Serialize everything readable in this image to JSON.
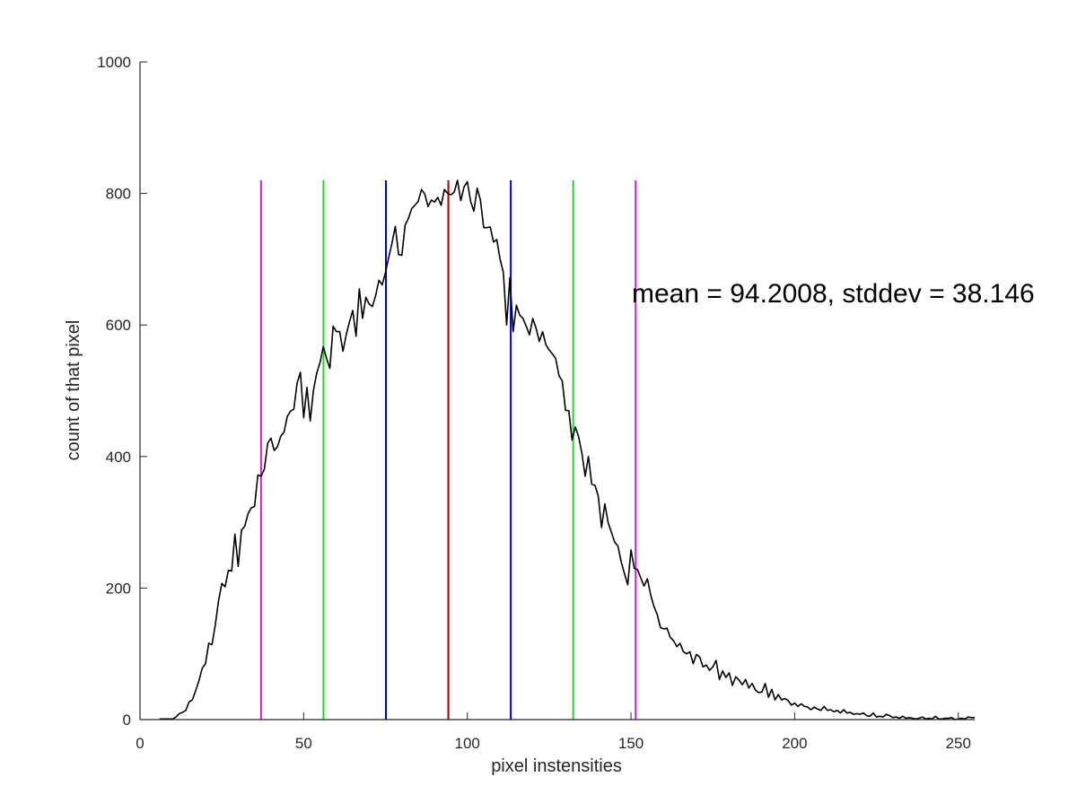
{
  "chart_data": {
    "type": "line",
    "title": "",
    "xlabel": "pixel instensities",
    "ylabel": "count of that pixel",
    "xlim": [
      0,
      255
    ],
    "ylim": [
      0,
      1000
    ],
    "xticks": [
      0,
      50,
      100,
      150,
      200,
      250
    ],
    "yticks": [
      0,
      200,
      400,
      600,
      800,
      1000
    ],
    "grid": false,
    "legend": "none",
    "annotation": "mean = 94.2008, stddev = 38.146",
    "series": [
      {
        "color": "#000000",
        "points": [
          [
            6,
            1
          ],
          [
            10,
            1
          ],
          [
            11,
            4
          ],
          [
            12,
            9
          ],
          [
            13,
            11
          ],
          [
            14,
            14
          ],
          [
            15,
            27
          ],
          [
            16,
            30
          ],
          [
            17,
            44
          ],
          [
            18,
            59
          ],
          [
            19,
            78
          ],
          [
            20,
            85
          ],
          [
            21,
            116
          ],
          [
            22,
            114
          ],
          [
            23,
            144
          ],
          [
            24,
            181
          ],
          [
            25,
            207
          ],
          [
            26,
            202
          ],
          [
            27,
            227
          ],
          [
            28,
            226
          ],
          [
            29,
            282
          ],
          [
            30,
            233
          ],
          [
            31,
            288
          ],
          [
            32,
            294
          ],
          [
            33,
            313
          ],
          [
            34,
            322
          ],
          [
            35,
            324
          ],
          [
            36,
            372
          ],
          [
            37,
            370
          ],
          [
            38,
            381
          ],
          [
            39,
            420
          ],
          [
            40,
            428
          ],
          [
            41,
            409
          ],
          [
            42,
            415
          ],
          [
            43,
            431
          ],
          [
            44,
            437
          ],
          [
            45,
            461
          ],
          [
            46,
            469
          ],
          [
            47,
            472
          ],
          [
            48,
            512
          ],
          [
            49,
            528
          ],
          [
            50,
            459
          ],
          [
            51,
            505
          ],
          [
            52,
            454
          ],
          [
            53,
            501
          ],
          [
            54,
            527
          ],
          [
            55,
            543
          ],
          [
            56,
            567
          ],
          [
            57,
            549
          ],
          [
            58,
            534
          ],
          [
            59,
            598
          ],
          [
            60,
            590
          ],
          [
            61,
            590
          ],
          [
            62,
            560
          ],
          [
            63,
            585
          ],
          [
            64,
            605
          ],
          [
            65,
            622
          ],
          [
            66,
            583
          ],
          [
            67,
            655
          ],
          [
            68,
            610
          ],
          [
            69,
            642
          ],
          [
            70,
            632
          ],
          [
            71,
            628
          ],
          [
            72,
            645
          ],
          [
            73,
            668
          ],
          [
            74,
            661
          ],
          [
            75,
            680
          ],
          [
            76,
            703
          ],
          [
            77,
            725
          ],
          [
            78,
            750
          ],
          [
            79,
            707
          ],
          [
            80,
            706
          ],
          [
            81,
            752
          ],
          [
            82,
            762
          ],
          [
            83,
            777
          ],
          [
            84,
            782
          ],
          [
            85,
            788
          ],
          [
            86,
            806
          ],
          [
            87,
            799
          ],
          [
            88,
            780
          ],
          [
            89,
            790
          ],
          [
            90,
            787
          ],
          [
            91,
            794
          ],
          [
            92,
            782
          ],
          [
            93,
            806
          ],
          [
            94,
            800
          ],
          [
            95,
            798
          ],
          [
            96,
            802
          ],
          [
            97,
            820
          ],
          [
            98,
            789
          ],
          [
            99,
            810
          ],
          [
            100,
            818
          ],
          [
            101,
            788
          ],
          [
            102,
            773
          ],
          [
            103,
            808
          ],
          [
            104,
            790
          ],
          [
            105,
            748
          ],
          [
            106,
            748
          ],
          [
            107,
            749
          ],
          [
            108,
            726
          ],
          [
            109,
            730
          ],
          [
            110,
            700
          ],
          [
            111,
            680
          ],
          [
            112,
            600
          ],
          [
            113,
            672
          ],
          [
            114,
            590
          ],
          [
            115,
            630
          ],
          [
            116,
            615
          ],
          [
            117,
            610
          ],
          [
            118,
            598
          ],
          [
            119,
            585
          ],
          [
            120,
            610
          ],
          [
            121,
            595
          ],
          [
            122,
            575
          ],
          [
            123,
            590
          ],
          [
            124,
            570
          ],
          [
            125,
            562
          ],
          [
            126,
            556
          ],
          [
            127,
            549
          ],
          [
            128,
            523
          ],
          [
            129,
            515
          ],
          [
            130,
            470
          ],
          [
            131,
            470
          ],
          [
            132,
            425
          ],
          [
            133,
            445
          ],
          [
            134,
            430
          ],
          [
            135,
            405
          ],
          [
            136,
            370
          ],
          [
            137,
            400
          ],
          [
            138,
            358
          ],
          [
            139,
            356
          ],
          [
            140,
            340
          ],
          [
            141,
            292
          ],
          [
            142,
            328
          ],
          [
            143,
            300
          ],
          [
            144,
            285
          ],
          [
            145,
            270
          ],
          [
            146,
            264
          ],
          [
            147,
            240
          ],
          [
            148,
            222
          ],
          [
            149,
            205
          ],
          [
            150,
            258
          ],
          [
            151,
            230
          ],
          [
            152,
            228
          ],
          [
            153,
            215
          ],
          [
            154,
            203
          ],
          [
            155,
            214
          ],
          [
            156,
            190
          ],
          [
            157,
            172
          ],
          [
            158,
            160
          ],
          [
            159,
            140
          ],
          [
            160,
            138
          ],
          [
            161,
            139
          ],
          [
            162,
            125
          ],
          [
            163,
            120
          ],
          [
            164,
            111
          ],
          [
            165,
            116
          ],
          [
            166,
            103
          ],
          [
            167,
            100
          ],
          [
            168,
            103
          ],
          [
            169,
            85
          ],
          [
            170,
            99
          ],
          [
            171,
            95
          ],
          [
            172,
            80
          ],
          [
            173,
            83
          ],
          [
            174,
            75
          ],
          [
            175,
            80
          ],
          [
            176,
            90
          ],
          [
            177,
            61
          ],
          [
            178,
            74
          ],
          [
            179,
            64
          ],
          [
            180,
            71
          ],
          [
            181,
            52
          ],
          [
            182,
            65
          ],
          [
            183,
            60
          ],
          [
            184,
            53
          ],
          [
            185,
            61
          ],
          [
            186,
            48
          ],
          [
            187,
            55
          ],
          [
            188,
            45
          ],
          [
            189,
            41
          ],
          [
            190,
            42
          ],
          [
            191,
            55
          ],
          [
            192,
            34
          ],
          [
            193,
            46
          ],
          [
            194,
            30
          ],
          [
            195,
            38
          ],
          [
            196,
            30
          ],
          [
            197,
            32
          ],
          [
            198,
            29
          ],
          [
            199,
            22
          ],
          [
            200,
            25
          ],
          [
            201,
            20
          ],
          [
            202,
            24
          ],
          [
            203,
            20
          ],
          [
            204,
            19
          ],
          [
            205,
            15
          ],
          [
            206,
            19
          ],
          [
            207,
            16
          ],
          [
            208,
            14
          ],
          [
            209,
            20
          ],
          [
            210,
            14
          ],
          [
            211,
            15
          ],
          [
            212,
            12
          ],
          [
            213,
            14
          ],
          [
            214,
            10
          ],
          [
            215,
            15
          ],
          [
            216,
            10
          ],
          [
            217,
            11
          ],
          [
            218,
            8
          ],
          [
            219,
            9
          ],
          [
            220,
            8
          ],
          [
            221,
            10
          ],
          [
            222,
            6
          ],
          [
            223,
            5
          ],
          [
            224,
            10
          ],
          [
            225,
            4
          ],
          [
            226,
            5
          ],
          [
            227,
            4
          ],
          [
            228,
            8
          ],
          [
            229,
            6
          ],
          [
            230,
            3
          ],
          [
            231,
            4
          ],
          [
            232,
            2
          ],
          [
            233,
            5
          ],
          [
            234,
            2
          ],
          [
            235,
            3
          ],
          [
            236,
            2
          ],
          [
            237,
            1
          ],
          [
            238,
            2
          ],
          [
            239,
            4
          ],
          [
            240,
            1
          ],
          [
            241,
            2
          ],
          [
            242,
            1
          ],
          [
            243,
            5
          ],
          [
            244,
            1
          ],
          [
            245,
            1
          ],
          [
            246,
            2
          ],
          [
            247,
            2
          ],
          [
            248,
            3
          ],
          [
            249,
            0
          ],
          [
            250,
            1
          ],
          [
            251,
            2
          ],
          [
            252,
            1
          ],
          [
            253,
            4
          ],
          [
            254,
            3
          ],
          [
            255,
            3
          ]
        ]
      }
    ],
    "vlines": [
      {
        "x": 94.2008,
        "color": "#a00000"
      },
      {
        "x": 75.1278,
        "color": "#0000a0"
      },
      {
        "x": 113.2738,
        "color": "#0000c0"
      },
      {
        "x": 56.0548,
        "color": "#20d820"
      },
      {
        "x": 132.3468,
        "color": "#20d820"
      },
      {
        "x": 36.9818,
        "color": "#d020d0"
      },
      {
        "x": 151.4198,
        "color": "#d020d0"
      }
    ],
    "vline_ylim": [
      0,
      820
    ]
  }
}
